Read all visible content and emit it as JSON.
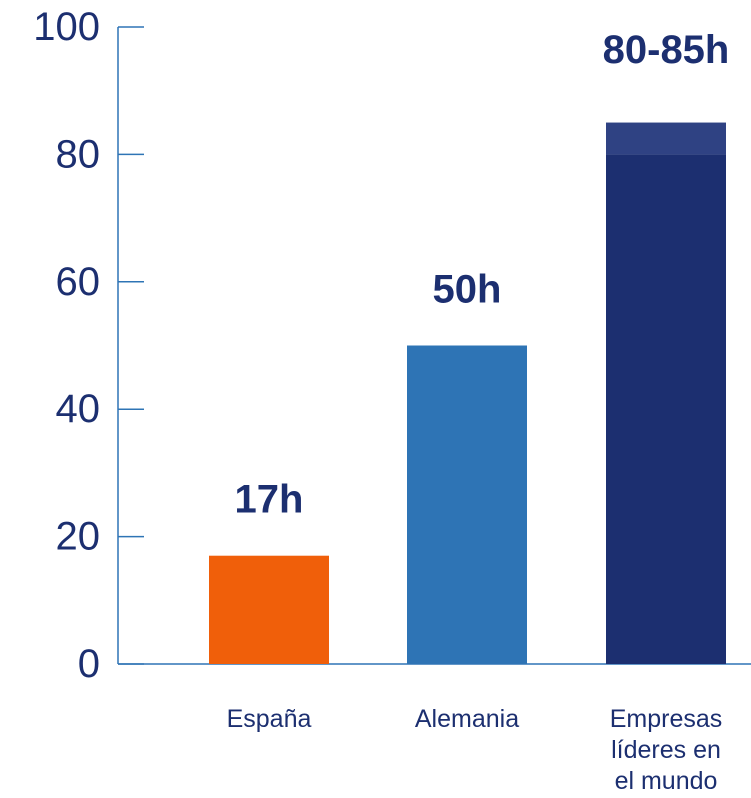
{
  "chart_data": {
    "type": "bar",
    "categories": [
      [
        "España"
      ],
      [
        "Alemania"
      ],
      [
        "Empresas",
        "líderes en",
        "el mundo"
      ]
    ],
    "values": [
      17,
      50,
      80
    ],
    "range_extension": [
      null,
      null,
      85
    ],
    "data_labels": [
      "17h",
      "50h",
      "80-85h"
    ],
    "bar_colors": [
      "#f05f0a",
      "#2e74b5",
      "#1c2f70"
    ],
    "range_extension_color": "#2f4283",
    "text_color": "#1c2f70",
    "axis_color": "#2e74b5",
    "ylim": [
      0,
      100
    ],
    "yticks": [
      0,
      20,
      40,
      60,
      80,
      100
    ],
    "grid": false,
    "title": "",
    "xlabel": "",
    "ylabel": ""
  }
}
